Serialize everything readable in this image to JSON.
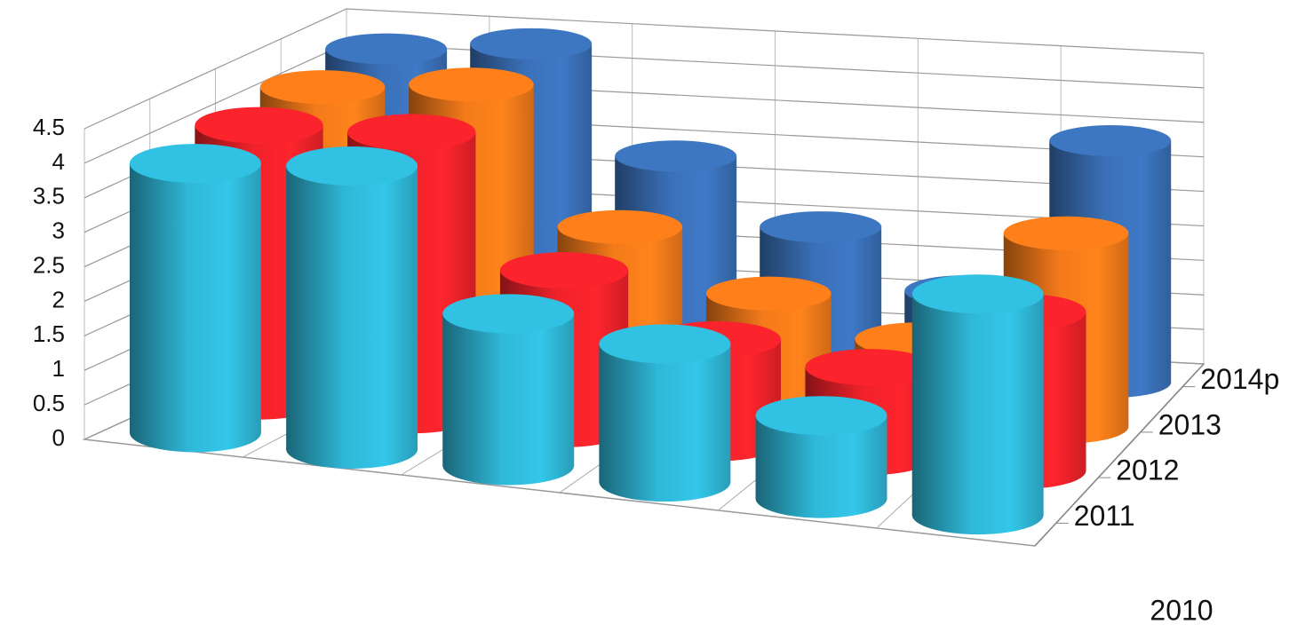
{
  "chart_data": {
    "type": "bar3d",
    "categories": [
      null,
      null,
      null,
      null,
      null,
      null
    ],
    "series": [
      {
        "name": "2011",
        "color": "#2fb8d8",
        "values": [
          3.9,
          4.1,
          2.2,
          2.0,
          1.2,
          3.2
        ]
      },
      {
        "name": "2012",
        "color": "#f0222a",
        "values": [
          4.0,
          4.1,
          2.3,
          1.5,
          1.3,
          2.3
        ]
      },
      {
        "name": "2013",
        "color": "#f47a1a",
        "values": [
          4.1,
          4.3,
          2.4,
          1.6,
          1.1,
          2.8
        ]
      },
      {
        "name": "2014p",
        "color": "#3a70b8",
        "values": [
          4.2,
          4.4,
          2.9,
          2.0,
          1.2,
          3.5
        ]
      }
    ],
    "annotation": "2010",
    "ylim": [
      0,
      4.5
    ],
    "yticks": [
      0,
      0.5,
      1,
      1.5,
      2,
      2.5,
      3,
      3.5,
      4,
      4.5
    ],
    "grid": true
  }
}
